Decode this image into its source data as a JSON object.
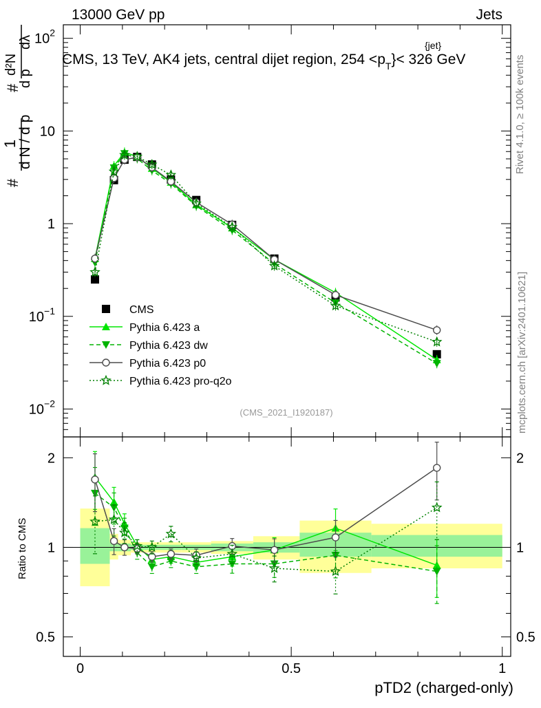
{
  "header": {
    "left": "13000 GeV pp",
    "right": "Jets"
  },
  "side_labels": {
    "rivet": "Rivet 4.1.0, ≥ 100k events",
    "mcplots": "mcplots.cern.ch [arXiv:2401.10621]"
  },
  "chart_data": [
    {
      "type": "line",
      "panel": "main",
      "title_parts": {
        "before": "CMS, 13 TeV, AK4 jets, central dijet region, 254 <p",
        "sub": "T",
        "sup": "{jet}",
        "after": "}< 326 GeV"
      },
      "ylabel_parts": {
        "hash": "#",
        "one": "1",
        "dN_dpT": "d N / d p",
        "T": "T",
        "hash2": "#",
        "d2N": "d²N",
        "dpT_dlambda": "d p",
        "lambda": "dλ"
      },
      "yscale": "log",
      "ylim": [
        0.005,
        140
      ],
      "xlim": [
        -0.04,
        1.02
      ],
      "y_tick_labels": [
        {
          "value": 100,
          "base": "10",
          "exp": "2"
        },
        {
          "value": 10,
          "base": "10",
          "exp": ""
        },
        {
          "value": 1,
          "base": "1",
          "exp": ""
        },
        {
          "value": 0.1,
          "base": "10",
          "exp": "−1"
        },
        {
          "value": 0.01,
          "base": "10",
          "exp": "−2"
        }
      ],
      "watermark": "(CMS_2021_I1920187)",
      "legend_position": "lower-left",
      "series": [
        {
          "name": "CMS",
          "color": "#000000",
          "marker": "square",
          "line": "none",
          "x": [
            0.035,
            0.08,
            0.105,
            0.135,
            0.17,
            0.215,
            0.275,
            0.36,
            0.46,
            0.605,
            0.845
          ],
          "values": [
            0.25,
            2.95,
            4.9,
            5.25,
            4.35,
            3.0,
            1.8,
            0.97,
            0.42,
            0.16,
            0.039
          ]
        },
        {
          "name": "Pythia 6.423 a",
          "color": "#00e600",
          "marker": "triangle-up",
          "line": "solid",
          "x": [
            0.035,
            0.08,
            0.105,
            0.135,
            0.17,
            0.215,
            0.275,
            0.36,
            0.46,
            0.605,
            0.845
          ],
          "values": [
            0.42,
            4.2,
            5.9,
            5.3,
            3.95,
            2.8,
            1.6,
            0.9,
            0.41,
            0.18,
            0.034
          ]
        },
        {
          "name": "Pythia 6.423 dw",
          "color": "#00b300",
          "marker": "triangle-down",
          "line": "dashed",
          "x": [
            0.035,
            0.08,
            0.105,
            0.135,
            0.17,
            0.215,
            0.275,
            0.36,
            0.46,
            0.605,
            0.845
          ],
          "values": [
            0.38,
            4.0,
            5.7,
            5.05,
            3.75,
            2.7,
            1.55,
            0.85,
            0.37,
            0.14,
            0.031
          ]
        },
        {
          "name": "Pythia 6.423 p0",
          "color": "#4d4d4d",
          "marker": "circle-open",
          "line": "solid",
          "x": [
            0.035,
            0.08,
            0.105,
            0.135,
            0.17,
            0.215,
            0.275,
            0.36,
            0.46,
            0.605,
            0.845
          ],
          "values": [
            0.42,
            3.1,
            4.9,
            5.2,
            4.05,
            2.85,
            1.7,
            0.98,
            0.41,
            0.17,
            0.071
          ]
        },
        {
          "name": "Pythia 6.423 pro-q2o",
          "color": "#008000",
          "marker": "star-open",
          "line": "dotted",
          "x": [
            0.035,
            0.08,
            0.105,
            0.135,
            0.17,
            0.215,
            0.275,
            0.36,
            0.46,
            0.605,
            0.845
          ],
          "values": [
            0.3,
            3.65,
            5.5,
            5.3,
            4.35,
            3.35,
            1.65,
            0.92,
            0.35,
            0.13,
            0.053
          ]
        }
      ]
    },
    {
      "type": "line",
      "panel": "ratio",
      "ylabel": "Ratio to CMS",
      "yscale": "log",
      "ylim": [
        0.43,
        2.35
      ],
      "xlim": [
        -0.04,
        1.02
      ],
      "y_ticks": [
        2,
        1,
        0.5
      ],
      "y_tick_labels": [
        "2",
        "1",
        "0.5"
      ],
      "x_ticks": [
        0,
        0.5,
        1
      ],
      "x_tick_labels": [
        "0",
        "0.5",
        "1"
      ],
      "xlabel": "pTD2 (charged-only)",
      "reference_line": 1,
      "bins": [
        0,
        0.07,
        0.09,
        0.12,
        0.15,
        0.19,
        0.24,
        0.31,
        0.41,
        0.52,
        0.69,
        1.0
      ],
      "band_inner_lo": [
        0.88,
        0.97,
        0.97,
        0.98,
        0.98,
        0.98,
        0.98,
        0.97,
        0.96,
        0.93,
        0.93
      ],
      "band_inner_hi": [
        1.16,
        1.04,
        1.03,
        1.02,
        1.02,
        1.02,
        1.02,
        1.03,
        1.04,
        1.12,
        1.1
      ],
      "band_outer_lo": [
        0.74,
        0.91,
        0.94,
        0.96,
        0.96,
        0.96,
        0.96,
        0.95,
        0.91,
        0.82,
        0.85
      ],
      "band_outer_hi": [
        1.35,
        1.11,
        1.06,
        1.04,
        1.04,
        1.04,
        1.04,
        1.05,
        1.09,
        1.23,
        1.2
      ],
      "series": [
        {
          "name": "Pythia 6.423 a",
          "color": "#00e600",
          "marker": "triangle-up",
          "line": "solid",
          "x": [
            0.035,
            0.08,
            0.105,
            0.135,
            0.17,
            0.215,
            0.275,
            0.36,
            0.46,
            0.605,
            0.845
          ],
          "values": [
            1.72,
            1.42,
            1.2,
            1.01,
            0.91,
            0.93,
            0.89,
            0.93,
            0.98,
            1.16,
            0.87
          ],
          "err": [
            0.22,
            0.12,
            0.08,
            0.05,
            0.05,
            0.05,
            0.05,
            0.07,
            0.1,
            0.16,
            0.22
          ]
        },
        {
          "name": "Pythia 6.423 dw",
          "color": "#00b300",
          "marker": "triangle-down",
          "line": "dashed",
          "x": [
            0.035,
            0.08,
            0.105,
            0.135,
            0.17,
            0.215,
            0.275,
            0.36,
            0.46,
            0.605,
            0.845
          ],
          "values": [
            1.52,
            1.36,
            1.16,
            0.96,
            0.86,
            0.9,
            0.86,
            0.88,
            0.88,
            0.94,
            0.83
          ],
          "err": [
            0.22,
            0.12,
            0.08,
            0.05,
            0.05,
            0.05,
            0.05,
            0.07,
            0.1,
            0.16,
            0.22
          ]
        },
        {
          "name": "Pythia 6.423 p0",
          "color": "#4d4d4d",
          "marker": "circle-open",
          "line": "solid",
          "x": [
            0.035,
            0.08,
            0.105,
            0.135,
            0.17,
            0.215,
            0.275,
            0.36,
            0.46,
            0.605,
            0.845
          ],
          "values": [
            1.69,
            1.05,
            1.0,
            0.99,
            0.93,
            0.95,
            0.94,
            1.01,
            0.98,
            1.08,
            1.85
          ],
          "err": [
            0.22,
            0.1,
            0.06,
            0.04,
            0.04,
            0.04,
            0.05,
            0.06,
            0.09,
            0.14,
            0.22
          ]
        },
        {
          "name": "Pythia 6.423 pro-q2o",
          "color": "#008000",
          "marker": "star-open",
          "line": "dotted",
          "x": [
            0.035,
            0.08,
            0.105,
            0.135,
            0.17,
            0.215,
            0.275,
            0.36,
            0.46,
            0.605,
            0.845
          ],
          "values": [
            1.22,
            1.24,
            1.12,
            1.01,
            1.0,
            1.11,
            0.92,
            0.95,
            0.85,
            0.83,
            1.36
          ],
          "err": [
            0.22,
            0.12,
            0.08,
            0.05,
            0.05,
            0.06,
            0.05,
            0.07,
            0.1,
            0.16,
            0.22
          ]
        }
      ]
    }
  ]
}
